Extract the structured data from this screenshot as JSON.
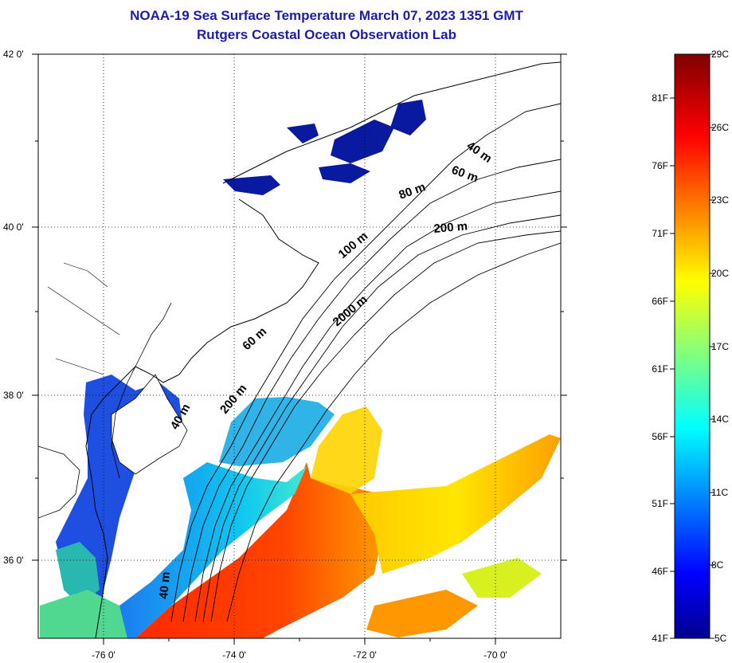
{
  "header": {
    "title": "NOAA-19 Sea Surface Temperature March 07, 2023 1351 GMT",
    "subtitle": "Rutgers Coastal Ocean Observation Lab"
  },
  "map": {
    "lat_labels": [
      "42 0'",
      "40 0'",
      "38 0'",
      "36 0'"
    ],
    "lon_labels": [
      "-76 0'",
      "-74 0'",
      "-72 0'",
      "-70 0'"
    ],
    "isobath_labels": [
      "40 m",
      "60 m",
      "80 m",
      "200 m",
      "100 m",
      "2000 m",
      "60 m",
      "40 m",
      "200 m",
      "40 m"
    ]
  },
  "colorbar": {
    "fahrenheit_labels": [
      "81F",
      "76F",
      "71F",
      "66F",
      "61F",
      "56F",
      "51F",
      "46F",
      "41F"
    ],
    "celsius_labels": [
      "29C",
      "26C",
      "23C",
      "20C",
      "17C",
      "14C",
      "11C",
      "8C",
      "5C"
    ],
    "range_c": [
      5,
      29
    ],
    "colormap": "jet"
  },
  "colors": {
    "title": "#1c1ca8",
    "land": "#ffffff",
    "coastline": "#000000"
  }
}
